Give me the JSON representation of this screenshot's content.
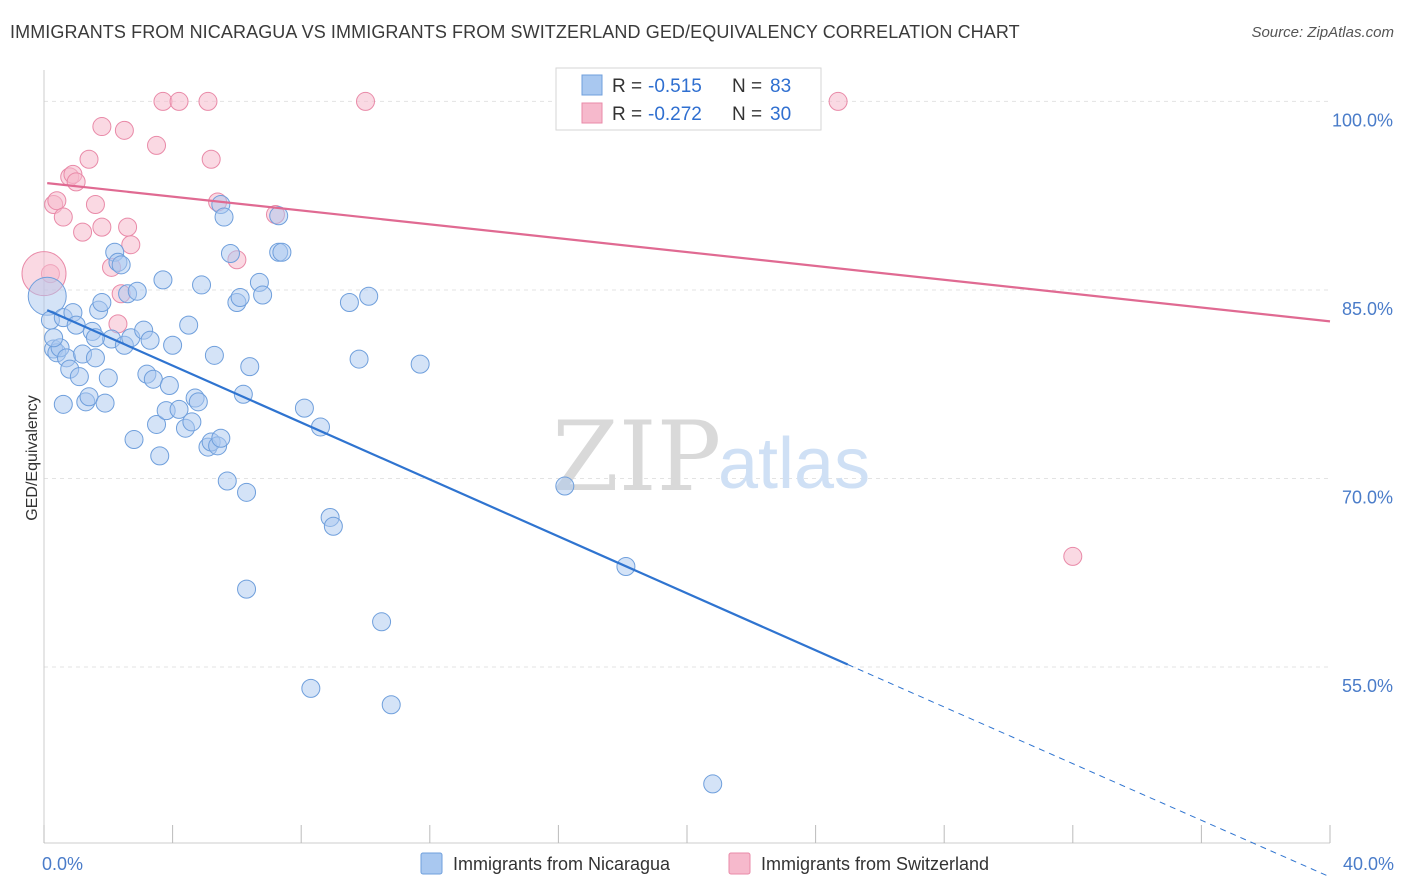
{
  "title": "IMMIGRANTS FROM NICARAGUA VS IMMIGRANTS FROM SWITZERLAND GED/EQUIVALENCY CORRELATION CHART",
  "source": "Source: ZipAtlas.com",
  "watermark": {
    "zip": "ZIP",
    "atlas": "atlas"
  },
  "colors": {
    "blue_fill": "#a9c8f0",
    "blue_stroke": "#6f9fdc",
    "blue_line": "#2f74d0",
    "pink_fill": "#f6b9cc",
    "pink_stroke": "#e98aa8",
    "pink_line": "#e06a92",
    "grid": "#e3e3e3",
    "tick_text": "#4a7cc9"
  },
  "legend": {
    "items": [
      {
        "r_label": "R = ",
        "r_value": "-0.515",
        "n_label": "N = ",
        "n_value": "83"
      },
      {
        "r_label": "R = ",
        "r_value": "-0.272",
        "n_label": "N = ",
        "n_value": "30"
      }
    ]
  },
  "chart_data": {
    "type": "scatter",
    "title": "IMMIGRANTS FROM NICARAGUA VS IMMIGRANTS FROM SWITZERLAND GED/EQUIVALENCY CORRELATION CHART",
    "xlabel": "",
    "ylabel": "GED/Equivalency",
    "xlim": [
      0,
      40
    ],
    "ylim": [
      41,
      102.5
    ],
    "x_tick_labels": [
      {
        "value": 0,
        "label": "0.0%"
      },
      {
        "value": 40,
        "label": "40.0%"
      }
    ],
    "y_tick_labels": [
      {
        "value": 100,
        "label": "100.0%"
      },
      {
        "value": 85,
        "label": "85.0%"
      },
      {
        "value": 70,
        "label": "70.0%"
      },
      {
        "value": 55,
        "label": "55.0%"
      }
    ],
    "grid": true,
    "legend_position": "top-center",
    "series": [
      {
        "name": "Immigrants from Nicaragua",
        "color": "#a9c8f0",
        "r": -0.515,
        "n": 83,
        "trend": {
          "x_start": 0.1,
          "y_start": 83.4,
          "x_solid_end": 25.0,
          "y_solid_end": 55.2,
          "x_end": 40.0,
          "y_end": 38.3
        },
        "points": [
          [
            0.1,
            84.5
          ],
          [
            0.2,
            82.6
          ],
          [
            0.3,
            80.3
          ],
          [
            0.4,
            80.0
          ],
          [
            0.5,
            80.4
          ],
          [
            0.6,
            82.8
          ],
          [
            0.7,
            79.6
          ],
          [
            0.8,
            78.7
          ],
          [
            0.6,
            75.9
          ],
          [
            0.9,
            83.2
          ],
          [
            1.0,
            82.2
          ],
          [
            1.1,
            78.1
          ],
          [
            1.2,
            79.9
          ],
          [
            1.3,
            76.1
          ],
          [
            1.4,
            76.5
          ],
          [
            1.5,
            81.7
          ],
          [
            1.6,
            79.6
          ],
          [
            1.7,
            83.4
          ],
          [
            1.8,
            84.0
          ],
          [
            1.9,
            76.0
          ],
          [
            2.0,
            78.0
          ],
          [
            2.1,
            81.1
          ],
          [
            2.2,
            88.0
          ],
          [
            2.3,
            87.2
          ],
          [
            2.4,
            87.0
          ],
          [
            2.5,
            80.6
          ],
          [
            2.6,
            84.7
          ],
          [
            2.7,
            81.2
          ],
          [
            2.8,
            73.1
          ],
          [
            2.9,
            84.9
          ],
          [
            3.1,
            81.8
          ],
          [
            3.2,
            78.3
          ],
          [
            3.3,
            81.0
          ],
          [
            3.4,
            77.9
          ],
          [
            3.5,
            74.3
          ],
          [
            3.6,
            71.8
          ],
          [
            3.7,
            85.8
          ],
          [
            3.8,
            75.4
          ],
          [
            3.9,
            77.4
          ],
          [
            4.0,
            80.6
          ],
          [
            4.2,
            75.5
          ],
          [
            4.4,
            74.0
          ],
          [
            4.5,
            82.2
          ],
          [
            4.6,
            74.5
          ],
          [
            4.7,
            76.4
          ],
          [
            4.8,
            76.1
          ],
          [
            4.9,
            85.4
          ],
          [
            5.1,
            72.5
          ],
          [
            5.2,
            72.9
          ],
          [
            5.3,
            79.8
          ],
          [
            5.4,
            72.6
          ],
          [
            5.5,
            91.8
          ],
          [
            5.5,
            73.2
          ],
          [
            5.6,
            90.8
          ],
          [
            5.7,
            69.8
          ],
          [
            5.8,
            87.9
          ],
          [
            6.0,
            84.0
          ],
          [
            6.1,
            84.4
          ],
          [
            6.2,
            76.7
          ],
          [
            6.3,
            68.9
          ],
          [
            6.3,
            61.2
          ],
          [
            6.4,
            78.9
          ],
          [
            6.7,
            85.6
          ],
          [
            6.8,
            84.6
          ],
          [
            7.3,
            88.0
          ],
          [
            7.4,
            88.0
          ],
          [
            7.3,
            90.9
          ],
          [
            8.1,
            75.6
          ],
          [
            8.6,
            74.1
          ],
          [
            8.9,
            66.9
          ],
          [
            9.0,
            66.2
          ],
          [
            8.3,
            53.3
          ],
          [
            9.5,
            84.0
          ],
          [
            9.8,
            79.5
          ],
          [
            10.1,
            84.5
          ],
          [
            10.5,
            58.6
          ],
          [
            10.8,
            52.0
          ],
          [
            11.7,
            79.1
          ],
          [
            16.2,
            69.4
          ],
          [
            18.1,
            63.0
          ],
          [
            20.8,
            45.7
          ],
          [
            0.3,
            81.2
          ],
          [
            1.6,
            81.2
          ]
        ]
      },
      {
        "name": "Immigrants from Switzerland",
        "color": "#f6b9cc",
        "r": -0.272,
        "n": 30,
        "trend": {
          "x_start": 0.1,
          "y_start": 93.5,
          "x_end": 40.0,
          "y_end": 82.5
        },
        "points": [
          [
            0.2,
            86.3
          ],
          [
            0.3,
            91.8
          ],
          [
            0.4,
            92.1
          ],
          [
            0.6,
            90.8
          ],
          [
            0.8,
            94.0
          ],
          [
            0.9,
            94.2
          ],
          [
            1.0,
            93.6
          ],
          [
            1.2,
            89.6
          ],
          [
            1.4,
            95.4
          ],
          [
            1.6,
            91.8
          ],
          [
            1.8,
            90.0
          ],
          [
            1.8,
            98.0
          ],
          [
            2.1,
            86.8
          ],
          [
            2.3,
            82.3
          ],
          [
            2.4,
            84.7
          ],
          [
            2.5,
            97.7
          ],
          [
            2.6,
            90.0
          ],
          [
            2.7,
            88.6
          ],
          [
            3.5,
            96.5
          ],
          [
            3.7,
            100.0
          ],
          [
            4.2,
            100.0
          ],
          [
            5.1,
            100.0
          ],
          [
            5.2,
            95.4
          ],
          [
            5.4,
            92.0
          ],
          [
            6.0,
            87.4
          ],
          [
            7.2,
            91.0
          ],
          [
            10.0,
            100.0
          ],
          [
            24.7,
            100.0
          ],
          [
            32.0,
            63.8
          ],
          [
            0.0,
            86.3
          ]
        ]
      }
    ]
  }
}
